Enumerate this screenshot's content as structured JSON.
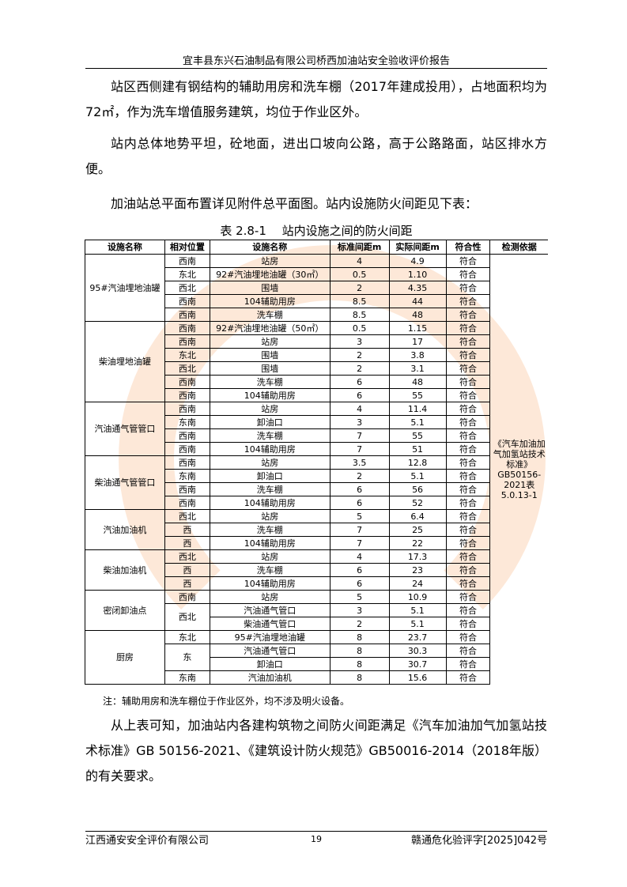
{
  "header": "宜丰县东兴石油制品有限公司桥西加油站安全验收评价报告",
  "paragraphs": [
    "站区西侧建有钢结构的辅助用房和洗车棚（2017年建成投用），占地面积均为72㎡，作为洗车增值服务建筑，均位于作业区外。",
    "站内总体地势平坦，砼地面，进出口坡向公路，高于公路路面，站区排水方便。",
    "加油站总平面布置详见附件总平面图。站内设施防火间距见下表："
  ],
  "table_caption": "表 2.8-1　 站内设施之间的防火间距",
  "table": {
    "headers": [
      "设施名称",
      "相对位置",
      "设施名称",
      "标准间距m",
      "实际间距m",
      "符合性",
      "检测依据"
    ],
    "basis": "《汽车加油加气加氢站技术标准》GB50156-2021表5.0.13-1",
    "groups": [
      {
        "name": "95#汽油埋地油罐",
        "rows": [
          [
            "西南",
            "站房",
            "4",
            "4.9",
            "符合"
          ],
          [
            "东北",
            "92#汽油埋地油罐（30㎥）",
            "0.5",
            "1.10",
            "符合"
          ],
          [
            "西北",
            "围墙",
            "2",
            "4.35",
            "符合"
          ],
          [
            "西南",
            "104辅助用房",
            "8.5",
            "44",
            "符合"
          ],
          [
            "西南",
            "洗车棚",
            "8.5",
            "48",
            "符合"
          ]
        ]
      },
      {
        "name": "柴油埋地油罐",
        "rows": [
          [
            "西南",
            "92#汽油埋地油罐（50㎥）",
            "0.5",
            "1.15",
            "符合"
          ],
          [
            "西南",
            "站房",
            "3",
            "17",
            "符合"
          ],
          [
            "东北",
            "围墙",
            "2",
            "3.8",
            "符合"
          ],
          [
            "西北",
            "围墙",
            "2",
            "3.1",
            "符合"
          ],
          [
            "西南",
            "洗车棚",
            "6",
            "48",
            "符合"
          ],
          [
            "西南",
            "104辅助用房",
            "6",
            "55",
            "符合"
          ]
        ]
      },
      {
        "name": "汽油通气管管口",
        "rows": [
          [
            "西南",
            "站房",
            "4",
            "11.4",
            "符合"
          ],
          [
            "东南",
            "卸油口",
            "3",
            "5.1",
            "符合"
          ],
          [
            "西南",
            "洗车棚",
            "7",
            "55",
            "符合"
          ],
          [
            "西南",
            "104辅助用房",
            "7",
            "51",
            "符合"
          ]
        ]
      },
      {
        "name": "柴油通气管管口",
        "rows": [
          [
            "西南",
            "站房",
            "3.5",
            "12.8",
            "符合"
          ],
          [
            "东南",
            "卸油口",
            "2",
            "5.1",
            "符合"
          ],
          [
            "西南",
            "洗车棚",
            "6",
            "56",
            "符合"
          ],
          [
            "西南",
            "104辅助用房",
            "6",
            "52",
            "符合"
          ]
        ]
      },
      {
        "name": "汽油加油机",
        "rows": [
          [
            "西北",
            "站房",
            "5",
            "6.4",
            "符合"
          ],
          [
            "西",
            "洗车棚",
            "7",
            "25",
            "符合"
          ],
          [
            "西",
            "104辅助用房",
            "7",
            "22",
            "符合"
          ]
        ]
      },
      {
        "name": "柴油加油机",
        "rows": [
          [
            "西北",
            "站房",
            "4",
            "17.3",
            "符合"
          ],
          [
            "西",
            "洗车棚",
            "6",
            "23",
            "符合"
          ],
          [
            "西",
            "104辅助用房",
            "6",
            "24",
            "符合"
          ]
        ]
      },
      {
        "name": "密闭卸油点",
        "rows": [
          [
            "西南",
            "站房",
            "5",
            "10.9",
            "符合"
          ],
          [
            "西北",
            "汽油通气管口",
            "3",
            "5.1",
            "符合"
          ],
          [
            "",
            "柴油通气管口",
            "2",
            "5.1",
            "符合"
          ]
        ]
      },
      {
        "name": "厨房",
        "rows": [
          [
            "东北",
            "95#汽油埋地油罐",
            "8",
            "23.7",
            "符合"
          ],
          [
            "东",
            "汽油通气管口",
            "8",
            "30.3",
            "符合"
          ],
          [
            "",
            "卸油口",
            "8",
            "30.7",
            "符合"
          ],
          [
            "东南",
            "汽油加油机",
            "8",
            "15.6",
            "符合"
          ]
        ]
      }
    ]
  },
  "note": "注：辅助用房和洗车棚位于作业区外，均不涉及明火设备。",
  "conclusion": "从上表可知，加油站内各建构筑物之间防火间距满足《汽车加油加气加氢站技术标准》GB 50156-2021、《建筑设计防火规范》GB50016-2014（2018年版）的有关要求。",
  "footer": {
    "company": "江西通安安全评价有限公司",
    "page": "19",
    "doc_no": "赣通危化验评字[2025]042号"
  },
  "watermark": "江西通安"
}
